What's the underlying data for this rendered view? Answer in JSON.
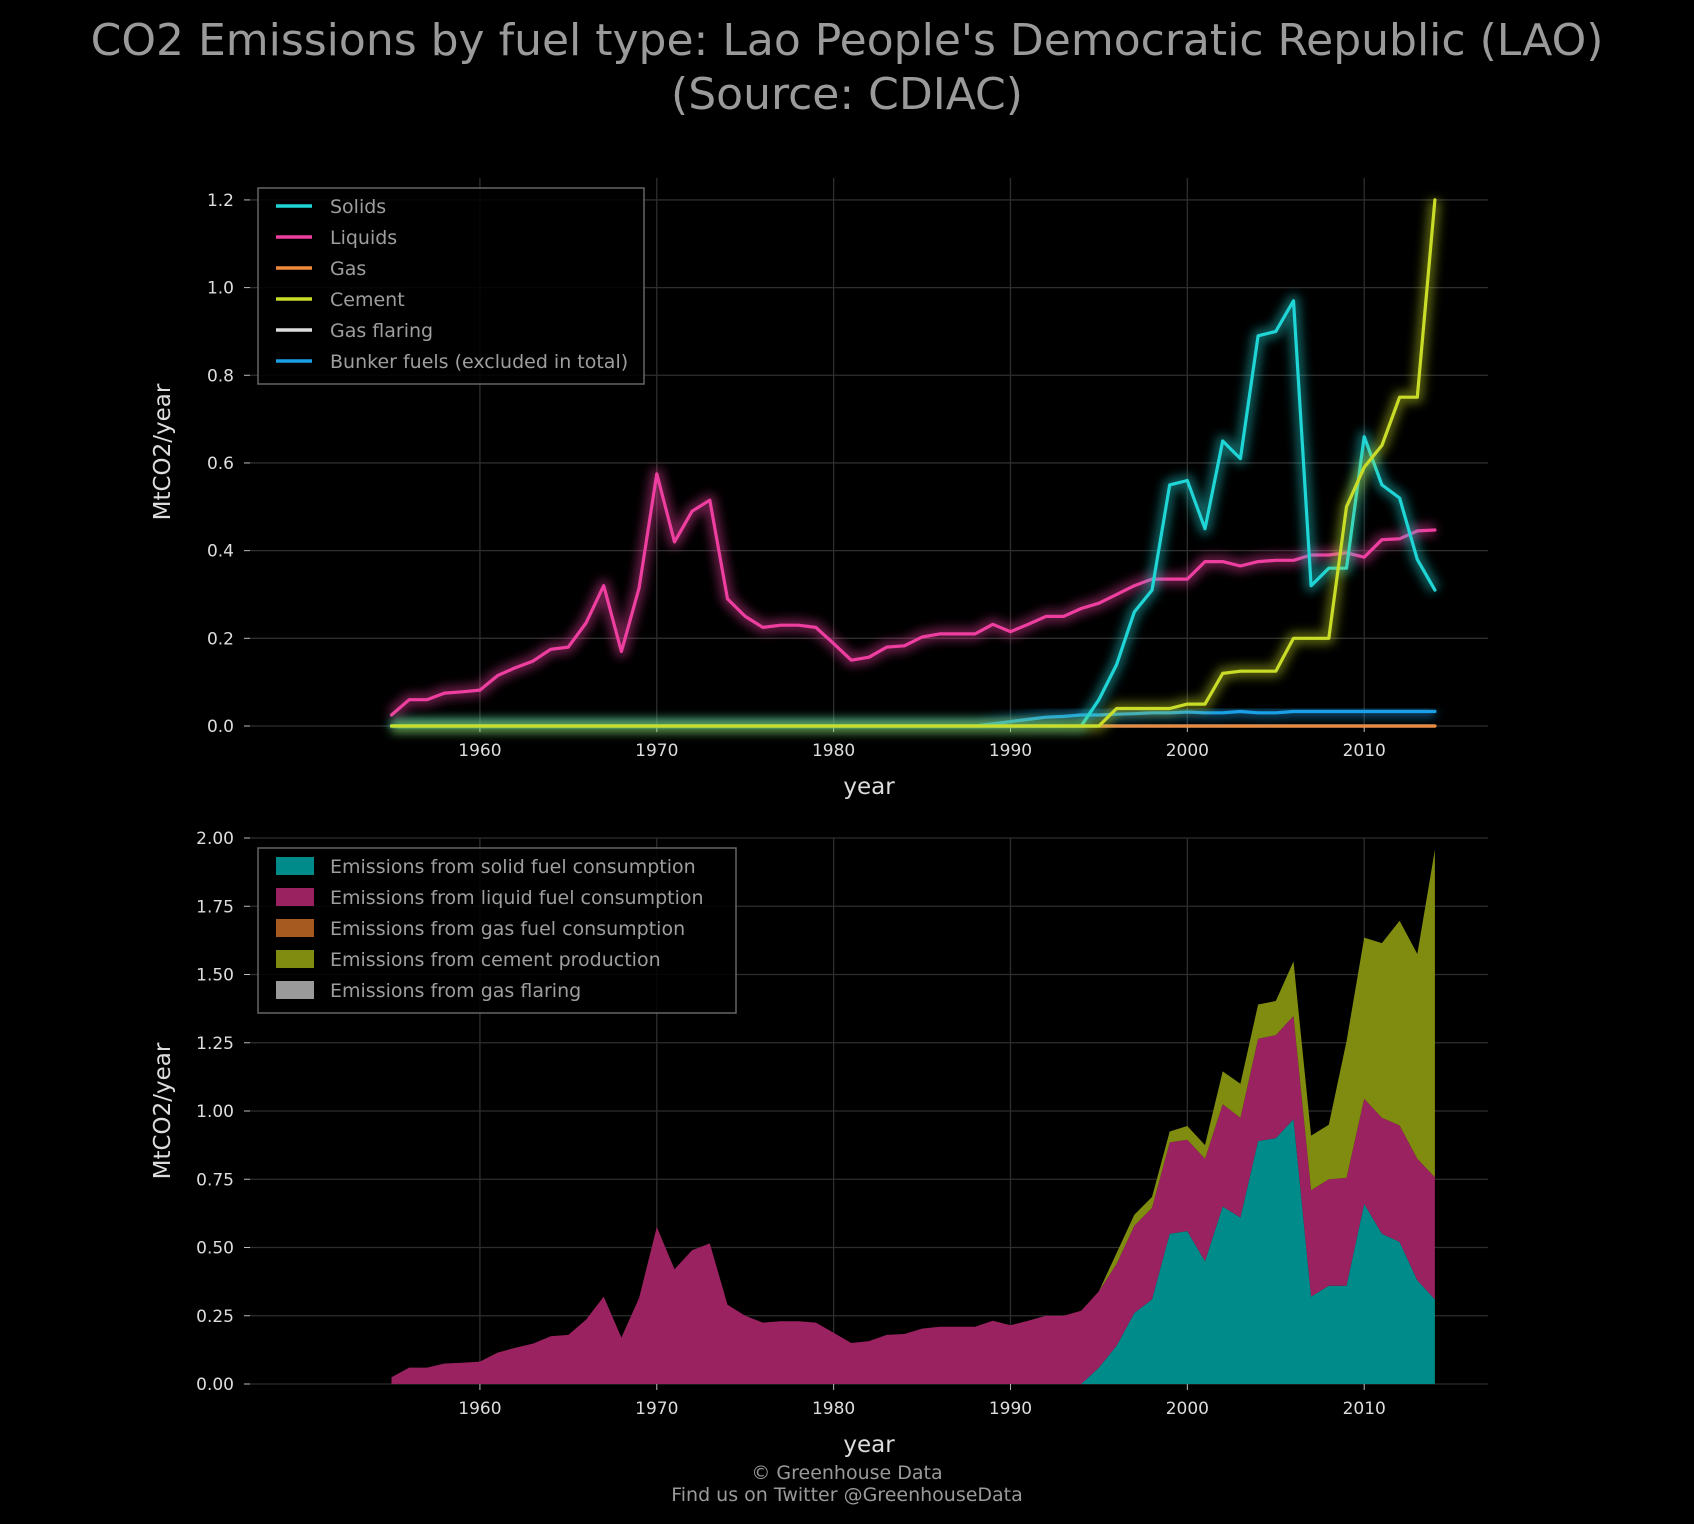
{
  "title_line1": "CO2 Emissions by fuel type: Lao People's Democratic Republic (LAO)",
  "title_line2": "(Source: CDIAC)",
  "footer_line1": "© Greenhouse Data",
  "footer_line2": "Find us on Twitter @GreenhouseData",
  "chart_data": [
    {
      "type": "line",
      "xlabel": "year",
      "ylabel": "MtCO2/year",
      "xlim": [
        1947,
        2017
      ],
      "ylim": [
        0,
        1.25
      ],
      "xticks": [
        1960,
        1970,
        1980,
        1990,
        2000,
        2010
      ],
      "yticks": [
        0.0,
        0.2,
        0.4,
        0.6,
        0.8,
        1.0,
        1.2
      ],
      "ytick_labels": [
        "0.0",
        "0.2",
        "0.4",
        "0.6",
        "0.8",
        "1.0",
        "1.2"
      ],
      "grid": true,
      "legend_position": "top-left",
      "x": [
        1955,
        1956,
        1957,
        1958,
        1959,
        1960,
        1961,
        1962,
        1963,
        1964,
        1965,
        1966,
        1967,
        1968,
        1969,
        1970,
        1971,
        1972,
        1973,
        1974,
        1975,
        1976,
        1977,
        1978,
        1979,
        1980,
        1981,
        1982,
        1983,
        1984,
        1985,
        1986,
        1987,
        1988,
        1989,
        1990,
        1991,
        1992,
        1993,
        1994,
        1995,
        1996,
        1997,
        1998,
        1999,
        2000,
        2001,
        2002,
        2003,
        2004,
        2005,
        2006,
        2007,
        2008,
        2009,
        2010,
        2011,
        2012,
        2013,
        2014
      ],
      "series": [
        {
          "name": "Solids",
          "color": "#1fd5d5",
          "values": [
            0,
            0,
            0,
            0,
            0,
            0,
            0,
            0,
            0,
            0,
            0,
            0,
            0,
            0,
            0,
            0,
            0,
            0,
            0,
            0,
            0,
            0,
            0,
            0,
            0,
            0,
            0,
            0,
            0,
            0,
            0,
            0,
            0,
            0,
            0,
            0,
            0,
            0,
            0,
            0,
            0.06,
            0.14,
            0.26,
            0.31,
            0.55,
            0.56,
            0.45,
            0.65,
            0.61,
            0.89,
            0.9,
            0.97,
            0.32,
            0.36,
            0.36,
            0.66,
            0.55,
            0.52,
            0.38,
            0.31
          ]
        },
        {
          "name": "Liquids",
          "color": "#ee3fa0",
          "values": [
            0.025,
            0.06,
            0.06,
            0.075,
            0.078,
            0.082,
            0.115,
            0.133,
            0.148,
            0.175,
            0.18,
            0.235,
            0.32,
            0.17,
            0.315,
            0.575,
            0.42,
            0.49,
            0.515,
            0.29,
            0.25,
            0.225,
            0.23,
            0.23,
            0.225,
            0.188,
            0.15,
            0.157,
            0.18,
            0.183,
            0.203,
            0.21,
            0.21,
            0.21,
            0.232,
            0.215,
            0.232,
            0.25,
            0.25,
            0.268,
            0.28,
            0.3,
            0.32,
            0.335,
            0.335,
            0.335,
            0.375,
            0.375,
            0.365,
            0.375,
            0.378,
            0.378,
            0.39,
            0.39,
            0.395,
            0.385,
            0.425,
            0.427,
            0.445,
            0.447
          ]
        },
        {
          "name": "Gas",
          "color": "#f08a3c",
          "values": [
            0,
            0,
            0,
            0,
            0,
            0,
            0,
            0,
            0,
            0,
            0,
            0,
            0,
            0,
            0,
            0,
            0,
            0,
            0,
            0,
            0,
            0,
            0,
            0,
            0,
            0,
            0,
            0,
            0,
            0,
            0,
            0,
            0,
            0,
            0,
            0,
            0,
            0,
            0,
            0,
            0,
            0,
            0,
            0,
            0,
            0,
            0,
            0,
            0,
            0,
            0,
            0,
            0,
            0,
            0,
            0,
            0,
            0,
            0,
            0
          ]
        },
        {
          "name": "Cement",
          "color": "#c8dc28",
          "values": [
            0,
            0,
            0,
            0,
            0,
            0,
            0,
            0,
            0,
            0,
            0,
            0,
            0,
            0,
            0,
            0,
            0,
            0,
            0,
            0,
            0,
            0,
            0,
            0,
            0,
            0,
            0,
            0,
            0,
            0,
            0,
            0,
            0,
            0,
            0,
            0,
            0,
            0,
            0,
            0,
            0,
            0.04,
            0.04,
            0.04,
            0.04,
            0.05,
            0.05,
            0.12,
            0.125,
            0.125,
            0.125,
            0.2,
            0.2,
            0.2,
            0.5,
            0.59,
            0.64,
            0.75,
            0.75,
            1.2
          ]
        },
        {
          "name": "Gas flaring",
          "color": "#dddddd",
          "values": [
            0,
            0,
            0,
            0,
            0,
            0,
            0,
            0,
            0,
            0,
            0,
            0,
            0,
            0,
            0,
            0,
            0,
            0,
            0,
            0,
            0,
            0,
            0,
            0,
            0,
            0,
            0,
            0,
            0,
            0,
            0,
            0,
            0,
            0,
            0,
            0,
            0,
            0,
            0,
            0,
            0,
            0,
            0,
            0,
            0,
            0,
            0,
            0,
            0,
            0,
            0,
            0,
            0,
            0,
            0,
            0,
            0,
            0,
            0,
            0
          ]
        },
        {
          "name": "Bunker fuels (excluded in total)",
          "color": "#1ba0e8",
          "values": [
            0,
            0,
            0,
            0,
            0,
            0,
            0,
            0,
            0,
            0,
            0,
            0,
            0,
            0,
            0,
            0,
            0,
            0,
            0,
            0,
            0,
            0,
            0,
            0,
            0,
            0,
            0,
            0,
            0,
            0,
            0,
            0,
            0,
            0,
            0.005,
            0.01,
            0.015,
            0.02,
            0.022,
            0.025,
            0.025,
            0.027,
            0.028,
            0.03,
            0.03,
            0.032,
            0.03,
            0.03,
            0.033,
            0.03,
            0.03,
            0.033,
            0.033,
            0.033,
            0.033,
            0.033,
            0.033,
            0.033,
            0.033,
            0.033
          ]
        }
      ]
    },
    {
      "type": "area",
      "stacked": true,
      "xlabel": "year",
      "ylabel": "MtCO2/year",
      "xlim": [
        1947,
        2017
      ],
      "ylim": [
        0,
        2.0
      ],
      "xticks": [
        1960,
        1970,
        1980,
        1990,
        2000,
        2010
      ],
      "yticks": [
        0.0,
        0.25,
        0.5,
        0.75,
        1.0,
        1.25,
        1.5,
        1.75,
        2.0
      ],
      "ytick_labels": [
        "0.00",
        "0.25",
        "0.50",
        "0.75",
        "1.00",
        "1.25",
        "1.50",
        "1.75",
        "2.00"
      ],
      "grid": true,
      "legend_position": "top-left",
      "series": [
        {
          "name": "Emissions from solid fuel consumption",
          "color": "#008b8b",
          "ref": "Solids"
        },
        {
          "name": "Emissions from liquid fuel consumption",
          "color": "#9b2260",
          "ref": "Liquids"
        },
        {
          "name": "Emissions from gas fuel consumption",
          "color": "#a65a1f",
          "ref": "Gas"
        },
        {
          "name": "Emissions from cement production",
          "color": "#808c10",
          "ref": "Cement"
        },
        {
          "name": "Emissions from gas flaring",
          "color": "#9a9a9a",
          "ref": "Gas flaring"
        }
      ]
    }
  ]
}
